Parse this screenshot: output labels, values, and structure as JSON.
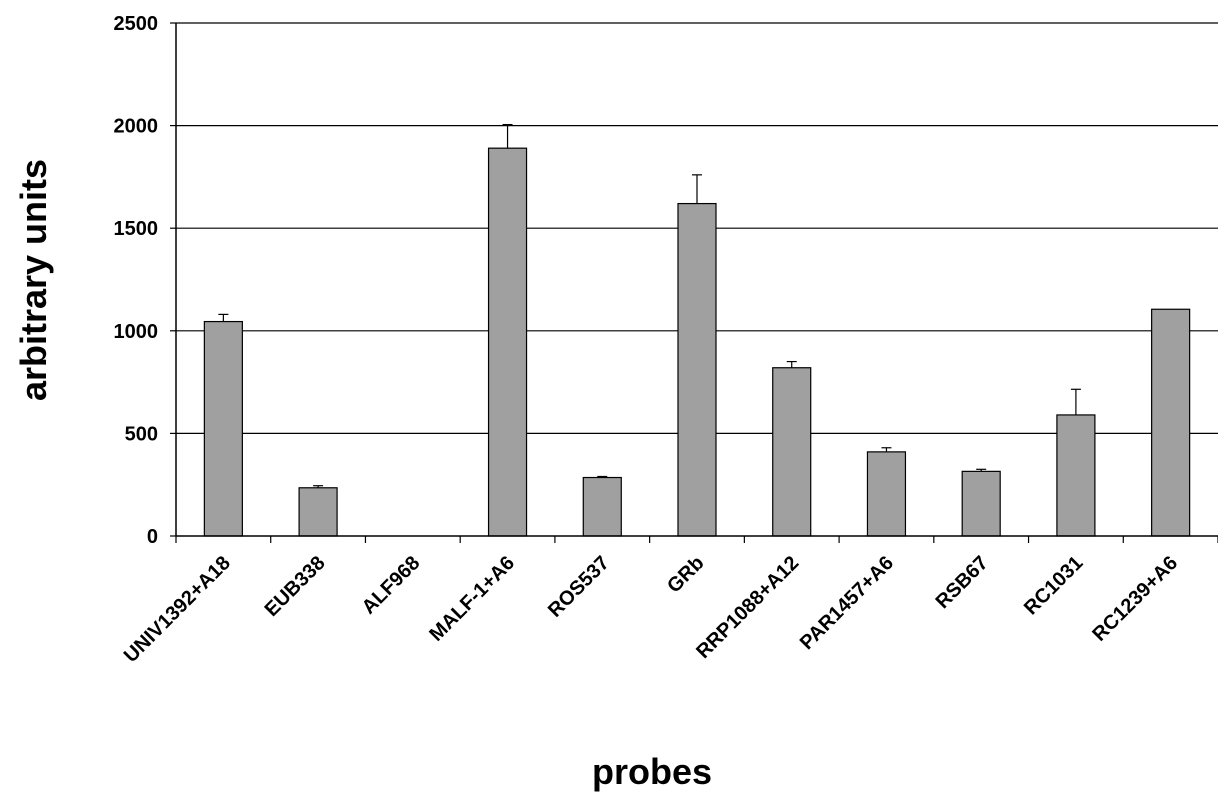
{
  "chart_data": {
    "type": "bar",
    "title": "",
    "xlabel": "probes",
    "ylabel": "arbitrary units",
    "ylim": [
      0,
      2500
    ],
    "yticks": [
      0,
      500,
      1000,
      1500,
      2000,
      2500
    ],
    "grid": true,
    "legend": "none",
    "bar_color": "#a0a0a0",
    "categories": [
      "UNIV1392+A18",
      "EUB338",
      "ALF968",
      "MALF-1+A6",
      "ROS537",
      "GRb",
      "RRP1088+A12",
      "PAR1457+A6",
      "RSB67",
      "RC1031",
      "RC1239+A6"
    ],
    "values": [
      1045,
      235,
      0,
      1890,
      285,
      1620,
      820,
      410,
      315,
      590,
      1105
    ],
    "error_upper": [
      35,
      10,
      0,
      115,
      5,
      140,
      30,
      20,
      10,
      125,
      0
    ]
  }
}
